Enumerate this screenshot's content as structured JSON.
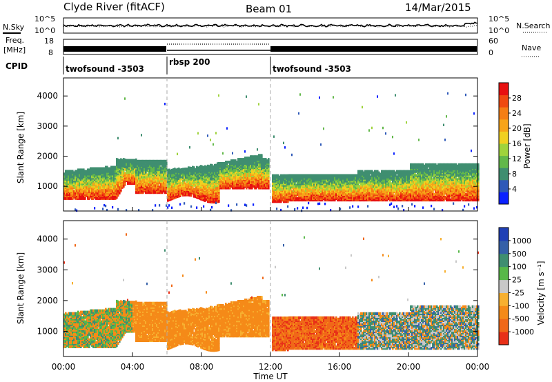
{
  "header": {
    "station": "Clyde River (fitACF)",
    "beam": "Beam 01",
    "date": "14/Mar/2015"
  },
  "strip_panels": {
    "nsky_label": "N.Sky",
    "nsearch_label": "N.Search",
    "noise_ticks_left": [
      "10^5",
      "10^0"
    ],
    "noise_ticks_right": [
      "10^5",
      "10^0"
    ],
    "freq_label_1": "Freq.",
    "freq_label_2": "[MHz]",
    "freq_ticks": [
      "18",
      "8"
    ],
    "nave_label": "Nave",
    "nave_ticks": [
      "60",
      "0"
    ],
    "cpid_label": "CPID"
  },
  "cpid_segments": [
    {
      "start_hour": 0,
      "end_hour": 6,
      "label": "twofsound -3503"
    },
    {
      "start_hour": 6,
      "end_hour": 12,
      "label": "rbsp 200"
    },
    {
      "start_hour": 12,
      "end_hour": 24,
      "label": "twofsound -3503"
    }
  ],
  "chart_data": [
    {
      "type": "heatmap",
      "panel": "power",
      "xlabel": "",
      "ylabel": "Slant Range [km]",
      "xlim": [
        0,
        24
      ],
      "ylim": [
        180,
        4600
      ],
      "yticks": [
        "1000",
        "2000",
        "3000",
        "4000"
      ],
      "colorbar_label": "Power [dB]",
      "colorbar_ticks": [
        "4",
        "8",
        "12",
        "16",
        "20",
        "24",
        "28"
      ],
      "colorbar_colors": [
        "#0b21ff",
        "#2e59b8",
        "#3f8e70",
        "#62b84a",
        "#9fd33c",
        "#f0d020",
        "#f7a418",
        "#f57e14",
        "#f04a10",
        "#e81010"
      ]
    },
    {
      "type": "heatmap",
      "panel": "velocity",
      "xlabel": "Time UT",
      "ylabel": "Slant Range [km]",
      "xlim": [
        0,
        24
      ],
      "ylim": [
        180,
        4600
      ],
      "yticks": [
        "1000",
        "2000",
        "3000",
        "4000"
      ],
      "xticks": [
        "00:00",
        "04:00",
        "08:00",
        "12:00",
        "16:00",
        "20:00",
        "00:00"
      ],
      "colorbar_label": "Velocity [m s⁻¹]",
      "colorbar_ticks": [
        "1000",
        "500",
        "100",
        "25",
        "-25",
        "-100",
        "-500",
        "-1000"
      ],
      "colorbar_colors": [
        "#1f3fb5",
        "#3560a8",
        "#3f8e70",
        "#58b848",
        "#c8c8c8",
        "#f7b030",
        "#f58a18",
        "#f06818",
        "#e83018"
      ]
    }
  ]
}
